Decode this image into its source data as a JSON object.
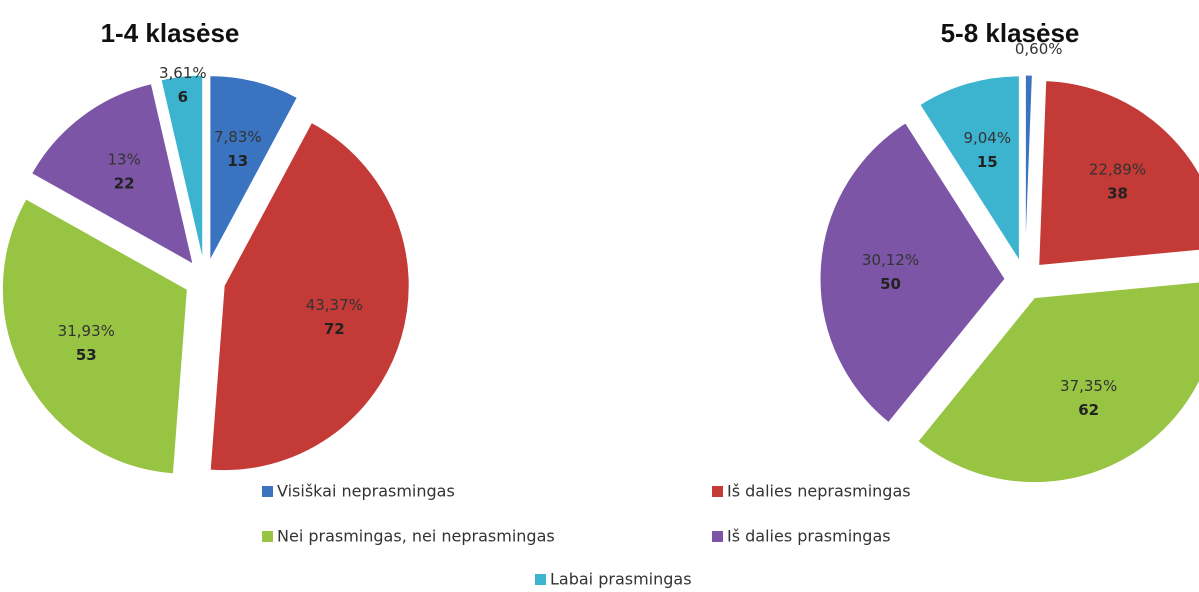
{
  "chart_data": [
    {
      "type": "pie",
      "title": "1-4 klasėse",
      "categories": [
        "Visiškai neprasmingas",
        "Iš dalies neprasmingas",
        "Nei prasmingas, nei neprasmingas",
        "Iš dalies prasmingas",
        "Labai prasmingas"
      ],
      "colors": [
        "#3a73c0",
        "#c33a36",
        "#98c444",
        "#7d55a6",
        "#3cb4cf"
      ],
      "values": [
        13,
        72,
        53,
        22,
        6
      ],
      "percents": [
        7.83,
        43.37,
        31.93,
        13,
        3.61
      ],
      "percent_labels": [
        "7,83%",
        "43,37%",
        "31,93%",
        "13%",
        "3,61%"
      ]
    },
    {
      "type": "pie",
      "title": "5-8 klasėse",
      "values": [
        1,
        38,
        62,
        50,
        15
      ],
      "percents": [
        0.6,
        22.89,
        37.35,
        30.12,
        9.04
      ],
      "percent_labels": [
        "0,60%",
        "22,89%",
        "37,35%",
        "30,12%",
        "9,04%"
      ]
    }
  ]
}
